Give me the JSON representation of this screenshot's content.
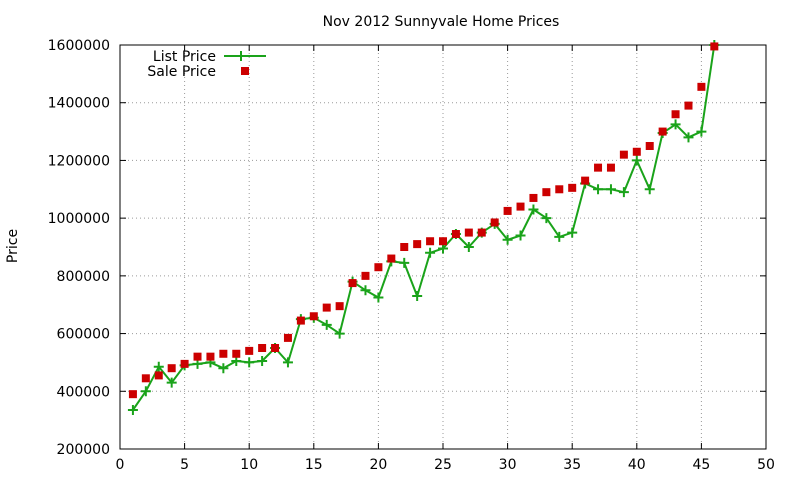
{
  "chart_data": {
    "type": "line",
    "title": "Nov 2012 Sunnyvale Home Prices",
    "xlabel": "",
    "ylabel": "Price",
    "xlim": [
      0,
      50
    ],
    "ylim": [
      200000,
      1600000
    ],
    "x_ticks": [
      "0",
      "5",
      "10",
      "15",
      "20",
      "25",
      "30",
      "35",
      "40",
      "45",
      "50"
    ],
    "y_ticks": [
      "200000",
      "400000",
      "600000",
      "800000",
      "1000000",
      "1200000",
      "1400000",
      "1600000"
    ],
    "grid": true,
    "legend_position": "top-left",
    "colors": {
      "list": "#1aa31a",
      "sale": "#cc0000"
    },
    "series": [
      {
        "name": "List Price",
        "style": "line-with-plus-markers",
        "x": [
          1,
          2,
          3,
          4,
          5,
          6,
          7,
          8,
          9,
          10,
          11,
          12,
          13,
          14,
          15,
          16,
          17,
          18,
          19,
          20,
          21,
          22,
          23,
          24,
          25,
          26,
          27,
          28,
          29,
          30,
          31,
          32,
          33,
          34,
          35,
          36,
          37,
          38,
          39,
          40,
          41,
          42,
          43,
          44,
          45,
          46
        ],
        "values": [
          335000,
          400000,
          485000,
          430000,
          490000,
          495000,
          500000,
          480000,
          505000,
          500000,
          505000,
          550000,
          500000,
          650000,
          655000,
          630000,
          600000,
          780000,
          750000,
          725000,
          850000,
          845000,
          730000,
          880000,
          895000,
          945000,
          900000,
          950000,
          980000,
          925000,
          940000,
          1030000,
          1000000,
          935000,
          950000,
          1120000,
          1100000,
          1100000,
          1090000,
          1200000,
          1100000,
          1295000,
          1325000,
          1280000,
          1300000,
          1600000
        ]
      },
      {
        "name": "Sale Price",
        "style": "square-markers",
        "x": [
          1,
          2,
          3,
          4,
          5,
          6,
          7,
          8,
          9,
          10,
          11,
          12,
          13,
          14,
          15,
          16,
          17,
          18,
          19,
          20,
          21,
          22,
          23,
          24,
          25,
          26,
          27,
          28,
          29,
          30,
          31,
          32,
          33,
          34,
          35,
          36,
          37,
          38,
          39,
          40,
          41,
          42,
          43,
          44,
          45,
          46
        ],
        "values": [
          390000,
          445000,
          455000,
          480000,
          495000,
          520000,
          520000,
          530000,
          530000,
          540000,
          550000,
          550000,
          585000,
          645000,
          660000,
          690000,
          695000,
          775000,
          800000,
          830000,
          860000,
          900000,
          910000,
          920000,
          920000,
          945000,
          950000,
          950000,
          985000,
          1025000,
          1040000,
          1070000,
          1090000,
          1100000,
          1105000,
          1130000,
          1175000,
          1175000,
          1220000,
          1230000,
          1250000,
          1300000,
          1360000,
          1390000,
          1455000,
          1595000
        ]
      }
    ]
  }
}
